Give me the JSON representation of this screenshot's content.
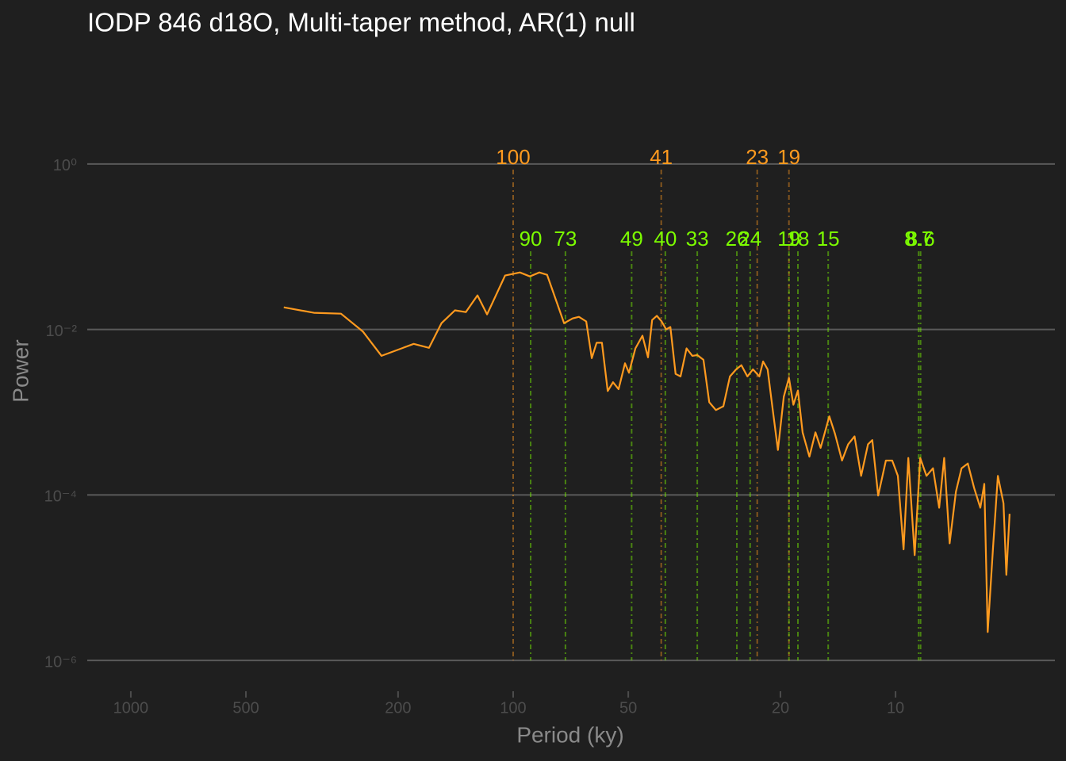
{
  "chart_data": {
    "type": "line",
    "title": "IODP 846 d18O, Multi-taper method, AR(1) null",
    "xlabel": "Period (ky)",
    "ylabel": "Power",
    "xscale": "log",
    "yscale": "log",
    "xlim": [
      1300,
      3.83
    ],
    "ylim": [
      5.52e-07,
      10
    ],
    "xticks": [
      1000,
      500,
      200,
      100,
      50,
      20,
      10
    ],
    "yticks": [
      {
        "value": 1,
        "label": "10⁰"
      },
      {
        "value": 0.01,
        "label": "10⁻²"
      },
      {
        "value": 0.0001,
        "label": "10⁻⁴"
      },
      {
        "value": 1e-06,
        "label": "10⁻⁶"
      }
    ],
    "grid": true,
    "color": "#ff9a1f",
    "x": [
      398,
      332,
      282,
      247,
      221,
      182,
      166,
      154,
      142,
      133,
      124,
      117,
      105,
      96,
      90.4,
      85.4,
      81.5,
      73.6,
      69.9,
      67.3,
      64.4,
      62.3,
      60.5,
      58.6,
      56.6,
      54.8,
      53.0,
      51.0,
      49.8,
      47.9,
      45.9,
      44.4,
      43.3,
      42.1,
      40.9,
      39.8,
      38.8,
      37.6,
      36.5,
      35.2,
      34.0,
      33.0,
      31.8,
      30.7,
      29.5,
      28.2,
      27.1,
      26.1,
      25.3,
      24.4,
      23.6,
      22.7,
      22.2,
      21.6,
      20.9,
      20.3,
      19.6,
      19.0,
      18.5,
      18.0,
      17.5,
      16.8,
      16.2,
      15.7,
      14.9,
      14.4,
      13.8,
      13.3,
      12.8,
      12.3,
      11.8,
      11.5,
      11.1,
      10.6,
      10.2,
      9.86,
      9.53,
      9.26,
      8.91,
      8.62,
      8.3,
      7.98,
      7.69,
      7.46,
      7.22,
      6.95,
      6.72,
      6.47,
      6.23,
      6.0,
      5.86,
      5.74,
      5.56,
      5.4,
      5.22,
      5.13,
      5.03
    ],
    "values": [
      0.0185,
      0.0159,
      0.0155,
      0.0094,
      0.0048,
      0.0067,
      0.006,
      0.0119,
      0.017,
      0.0162,
      0.0258,
      0.0152,
      0.0448,
      0.0489,
      0.0438,
      0.0489,
      0.0457,
      0.0119,
      0.0136,
      0.0142,
      0.0125,
      0.0045,
      0.0069,
      0.0069,
      0.0018,
      0.0023,
      0.0019,
      0.0039,
      0.003,
      0.0059,
      0.0084,
      0.0046,
      0.013,
      0.0146,
      0.0125,
      0.01,
      0.0107,
      0.0029,
      0.0027,
      0.0059,
      0.0048,
      0.0049,
      0.0043,
      0.00132,
      0.00106,
      0.00118,
      0.0027,
      0.0033,
      0.0037,
      0.0027,
      0.0033,
      0.0027,
      0.0041,
      0.0033,
      0.00099,
      0.00035,
      0.00154,
      0.0026,
      0.00123,
      0.00183,
      0.00057,
      0.00029,
      0.00057,
      0.00037,
      0.00089,
      0.00055,
      0.00026,
      0.00041,
      0.00051,
      0.00017,
      0.00041,
      0.00046,
      9.8e-05,
      0.00026,
      0.00026,
      0.00017,
      2.2e-05,
      0.00028,
      1.87e-05,
      0.00028,
      0.00017,
      0.00021,
      7e-05,
      0.00028,
      2.6e-05,
      0.000109,
      0.00021,
      0.00024,
      0.000122,
      7e-05,
      0.000136,
      2.2e-06,
      2.3e-05,
      0.00017,
      7.9e-05,
      1.08e-05,
      5.9e-05
    ],
    "peak_sets": [
      {
        "color": "#ff9a1f",
        "values": [
          100,
          41,
          23,
          19
        ]
      },
      {
        "color": "#7cfc00",
        "values": [
          90,
          73,
          49,
          40,
          33,
          26,
          24,
          19,
          18,
          15,
          8.7,
          8.6
        ]
      }
    ]
  }
}
